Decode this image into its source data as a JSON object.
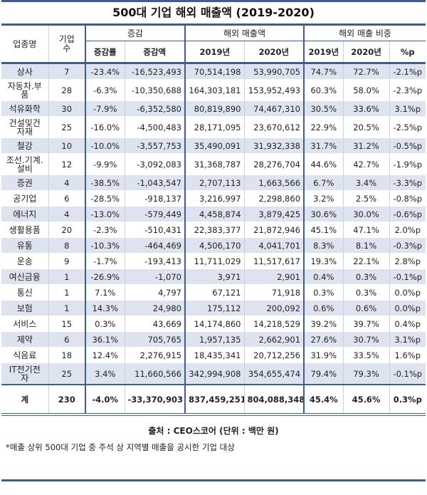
{
  "title": "500대 기업 해외 매출액 (2019-2020)",
  "headers": {
    "industry": "업종명",
    "count": "기업수",
    "change": "증감",
    "change_rate": "증감률",
    "change_amount": "증감액",
    "overseas_sales": "해외 매출액",
    "share": "해외 매출 비중",
    "y2019": "2019년",
    "y2020": "2020년",
    "pp": "%p"
  },
  "rows": [
    {
      "name": "상사",
      "count": "7",
      "rate": "-23.4%",
      "amount": "-16,523,493",
      "s2019": "70,514,198",
      "s2020": "53,990,705",
      "r2019": "74.7%",
      "r2020": "72.7%",
      "pp": "-2.1%p"
    },
    {
      "name": "자동차.부품",
      "count": "28",
      "rate": "-6.3%",
      "amount": "-10,350,688",
      "s2019": "164,303,181",
      "s2020": "153,952,493",
      "r2019": "60.3%",
      "r2020": "58.0%",
      "pp": "-2.3%p"
    },
    {
      "name": "석유화학",
      "count": "30",
      "rate": "-7.9%",
      "amount": "-6,352,580",
      "s2019": "80,819,890",
      "s2020": "74,467,310",
      "r2019": "30.5%",
      "r2020": "33.6%",
      "pp": "3.1%p"
    },
    {
      "name": "건설및건자재",
      "count": "25",
      "rate": "-16.0%",
      "amount": "-4,500,483",
      "s2019": "28,171,095",
      "s2020": "23,670,612",
      "r2019": "22.9%",
      "r2020": "20.5%",
      "pp": "-2.5%p"
    },
    {
      "name": "철강",
      "count": "10",
      "rate": "-10.0%",
      "amount": "-3,557,753",
      "s2019": "35,490,091",
      "s2020": "31,932,338",
      "r2019": "31.7%",
      "r2020": "31.2%",
      "pp": "-0.5%p"
    },
    {
      "name": "조선.기계.설비",
      "count": "12",
      "rate": "-9.9%",
      "amount": "-3,092,083",
      "s2019": "31,368,787",
      "s2020": "28,276,704",
      "r2019": "44.6%",
      "r2020": "42.7%",
      "pp": "-1.9%p"
    },
    {
      "name": "증권",
      "count": "4",
      "rate": "-38.5%",
      "amount": "-1,043,547",
      "s2019": "2,707,113",
      "s2020": "1,663,566",
      "r2019": "6.7%",
      "r2020": "3.4%",
      "pp": "-3.3%p"
    },
    {
      "name": "공기업",
      "count": "6",
      "rate": "-28.5%",
      "amount": "-918,137",
      "s2019": "3,216,997",
      "s2020": "2,298,860",
      "r2019": "3.2%",
      "r2020": "2.5%",
      "pp": "-0.8%p"
    },
    {
      "name": "에너지",
      "count": "4",
      "rate": "-13.0%",
      "amount": "-579,449",
      "s2019": "4,458,874",
      "s2020": "3,879,425",
      "r2019": "30.6%",
      "r2020": "30.0%",
      "pp": "-0.6%p"
    },
    {
      "name": "생활용품",
      "count": "20",
      "rate": "-2.3%",
      "amount": "-510,431",
      "s2019": "22,383,377",
      "s2020": "21,872,946",
      "r2019": "45.1%",
      "r2020": "47.1%",
      "pp": "2.0%p"
    },
    {
      "name": "유통",
      "count": "8",
      "rate": "-10.3%",
      "amount": "-464,469",
      "s2019": "4,506,170",
      "s2020": "4,041,701",
      "r2019": "8.3%",
      "r2020": "8.1%",
      "pp": "-0.3%p"
    },
    {
      "name": "운송",
      "count": "9",
      "rate": "-1.7%",
      "amount": "-193,413",
      "s2019": "11,711,029",
      "s2020": "11,517,617",
      "r2019": "19.3%",
      "r2020": "22.1%",
      "pp": "2.8%p"
    },
    {
      "name": "여신금융",
      "count": "1",
      "rate": "-26.9%",
      "amount": "-1,070",
      "s2019": "3,971",
      "s2020": "2,901",
      "r2019": "0.4%",
      "r2020": "0.3%",
      "pp": "-0.1%p"
    },
    {
      "name": "통신",
      "count": "1",
      "rate": "7.1%",
      "amount": "4,797",
      "s2019": "67,121",
      "s2020": "71,918",
      "r2019": "0.3%",
      "r2020": "0.3%",
      "pp": "0.0%p"
    },
    {
      "name": "보험",
      "count": "1",
      "rate": "14.3%",
      "amount": "24,980",
      "s2019": "175,112",
      "s2020": "200,092",
      "r2019": "0.6%",
      "r2020": "0.6%",
      "pp": "0.0%p"
    },
    {
      "name": "서비스",
      "count": "15",
      "rate": "0.3%",
      "amount": "43,669",
      "s2019": "14,174,860",
      "s2020": "14,218,529",
      "r2019": "39.2%",
      "r2020": "39.7%",
      "pp": "0.4%p"
    },
    {
      "name": "제약",
      "count": "6",
      "rate": "36.1%",
      "amount": "705,765",
      "s2019": "1,957,135",
      "s2020": "2,662,901",
      "r2019": "27.6%",
      "r2020": "30.7%",
      "pp": "3.1%p"
    },
    {
      "name": "식음료",
      "count": "18",
      "rate": "12.4%",
      "amount": "2,276,915",
      "s2019": "18,435,341",
      "s2020": "20,712,256",
      "r2019": "31.9%",
      "r2020": "33.5%",
      "pp": "1.6%p"
    },
    {
      "name": "IT전기전자",
      "count": "25",
      "rate": "3.4%",
      "amount": "11,660,566",
      "s2019": "342,994,908",
      "s2020": "354,655,474",
      "r2019": "79.4%",
      "r2020": "79.3%",
      "pp": "-0.1%p"
    }
  ],
  "total": {
    "name": "계",
    "count": "230",
    "rate": "-4.0%",
    "amount": "-33,370,903",
    "s2019": "837,459,251",
    "s2020": "804,088,348",
    "r2019": "45.4%",
    "r2020": "45.6%",
    "pp": "0.3%p"
  },
  "source": "출처 : CEO스코어 (단위 : 백만 원)",
  "note": "*매출 상위 500대 기업 중 주석 상 지역별 매출을 공시한 기업 대상"
}
